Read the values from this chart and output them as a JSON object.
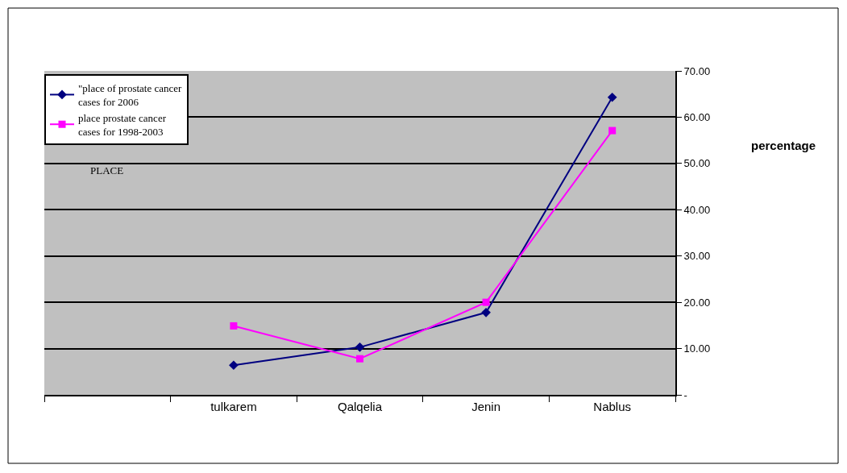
{
  "chart_data": {
    "type": "line",
    "xlabel": "PLACE",
    "ylabel": "percentage",
    "categories": [
      null,
      "tulkarem",
      "Qalqelia",
      "Jenin",
      "Nablus"
    ],
    "series": [
      {
        "name": "\"place of prostate cancer cases for 2006",
        "color": "#000080",
        "marker": "diamond",
        "values": [
          null,
          6.4,
          10.3,
          17.8,
          64.3
        ]
      },
      {
        "name": "place prostate cancer cases for 1998-2003",
        "color": "#ff00ff",
        "marker": "square",
        "values": [
          null,
          14.9,
          7.8,
          20.0,
          57.1
        ]
      }
    ],
    "ylim": [
      0,
      70
    ],
    "yticks": [
      {
        "value": 0,
        "label": "-"
      },
      {
        "value": 10,
        "label": "10.00"
      },
      {
        "value": 20,
        "label": "20.00"
      },
      {
        "value": 30,
        "label": "30.00"
      },
      {
        "value": 40,
        "label": "40.00"
      },
      {
        "value": 50,
        "label": "50.00"
      },
      {
        "value": 60,
        "label": "60.00"
      },
      {
        "value": 70,
        "label": "70.00"
      }
    ],
    "grid": "y",
    "legend": "top left",
    "line_style": "solid"
  }
}
